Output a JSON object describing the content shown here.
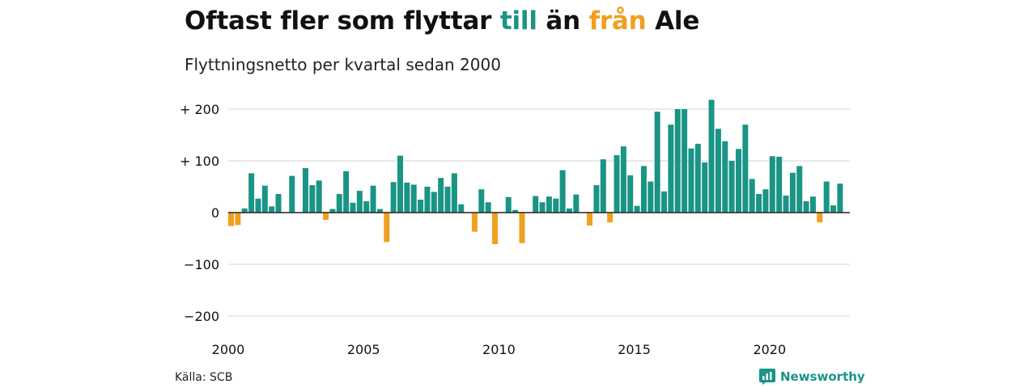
{
  "title": {
    "part1": "Oftast fler som flyttar ",
    "till": "till",
    "part2": " än ",
    "fran": "från",
    "part3": " Ale"
  },
  "subtitle": "Flyttningsnetto per kvartal sedan 2000",
  "source": "Källa: SCB",
  "brand": {
    "name": "Newsworthy",
    "icon": "newsworthy-logo-icon"
  },
  "colors": {
    "positive": "#1a9485",
    "negative": "#f0a020",
    "grid": "#dddddd",
    "zero": "#222222"
  },
  "chart_data": {
    "type": "bar",
    "x_start": "2000 Q1",
    "ylim": [
      -200,
      220
    ],
    "yticks": [
      200,
      100,
      0,
      -100,
      -200
    ],
    "ytick_labels": [
      "+ 200",
      "+ 100",
      "0",
      "−100",
      "−200"
    ],
    "xticks": [
      2000,
      2005,
      2010,
      2015,
      2020
    ],
    "grid": true,
    "values": [
      -26,
      -24,
      8,
      76,
      27,
      52,
      12,
      36,
      0,
      71,
      0,
      86,
      53,
      62,
      -14,
      7,
      36,
      80,
      19,
      42,
      22,
      52,
      7,
      -57,
      59,
      110,
      58,
      54,
      25,
      50,
      40,
      67,
      50,
      76,
      16,
      0,
      -37,
      45,
      20,
      -61,
      0,
      30,
      5,
      -59,
      0,
      32,
      20,
      31,
      27,
      82,
      8,
      35,
      0,
      -25,
      53,
      103,
      -19,
      111,
      128,
      72,
      13,
      90,
      60,
      195,
      41,
      170,
      200,
      200,
      124,
      133,
      97,
      218,
      162,
      138,
      100,
      123,
      170,
      65,
      36,
      45,
      109,
      108,
      33,
      77,
      90,
      22,
      31,
      -19,
      60,
      14,
      56
    ]
  }
}
